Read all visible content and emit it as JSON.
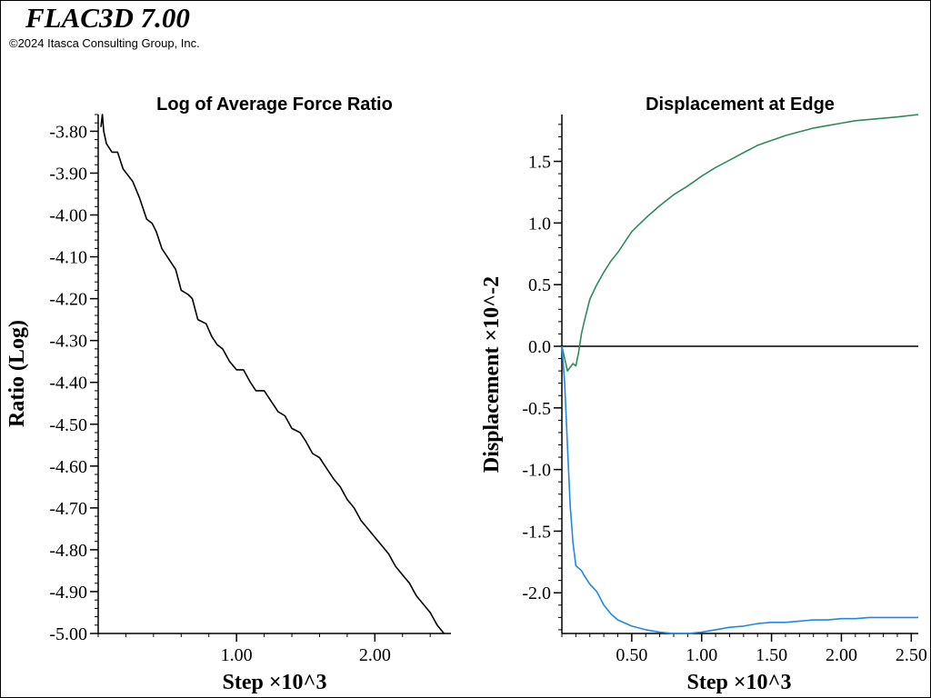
{
  "header": {
    "app_title": "FLAC3D 7.00",
    "copyright": "©2024 Itasca Consulting Group, Inc."
  },
  "chart_data": [
    {
      "type": "line",
      "title": "Log of Average Force Ratio",
      "xlabel": "Step ×10^3",
      "ylabel": "Ratio (Log)",
      "xlim": [
        0.0,
        2.55
      ],
      "ylim": [
        -5.0,
        -3.76
      ],
      "x_ticks": [
        {
          "v": 1.0,
          "label": "1.00"
        },
        {
          "v": 2.0,
          "label": "2.00"
        }
      ],
      "y_ticks": [
        {
          "v": -3.8,
          "label": "-3.80"
        },
        {
          "v": -3.9,
          "label": "-3.90"
        },
        {
          "v": -4.0,
          "label": "-4.00"
        },
        {
          "v": -4.1,
          "label": "-4.10"
        },
        {
          "v": -4.2,
          "label": "-4.20"
        },
        {
          "v": -4.3,
          "label": "-4.30"
        },
        {
          "v": -4.4,
          "label": "-4.40"
        },
        {
          "v": -4.5,
          "label": "-4.50"
        },
        {
          "v": -4.6,
          "label": "-4.60"
        },
        {
          "v": -4.7,
          "label": "-4.70"
        },
        {
          "v": -4.8,
          "label": "-4.80"
        },
        {
          "v": -4.9,
          "label": "-4.90"
        },
        {
          "v": -5.0,
          "label": "-5.00"
        }
      ],
      "grid": false,
      "series": [
        {
          "color": "#000000",
          "x": [
            0.02,
            0.03,
            0.04,
            0.06,
            0.1,
            0.14,
            0.18,
            0.25,
            0.3,
            0.35,
            0.39,
            0.42,
            0.46,
            0.52,
            0.56,
            0.6,
            0.65,
            0.68,
            0.72,
            0.78,
            0.82,
            0.86,
            0.9,
            0.95,
            1.0,
            1.05,
            1.1,
            1.14,
            1.2,
            1.26,
            1.3,
            1.35,
            1.4,
            1.46,
            1.5,
            1.55,
            1.6,
            1.66,
            1.7,
            1.75,
            1.8,
            1.85,
            1.9,
            1.95,
            2.0,
            2.05,
            2.1,
            2.15,
            2.2,
            2.25,
            2.3,
            2.35,
            2.4,
            2.45,
            2.5
          ],
          "values": [
            -3.79,
            -3.76,
            -3.8,
            -3.83,
            -3.85,
            -3.85,
            -3.89,
            -3.92,
            -3.96,
            -4.01,
            -4.02,
            -4.04,
            -4.08,
            -4.11,
            -4.13,
            -4.18,
            -4.19,
            -4.2,
            -4.25,
            -4.26,
            -4.29,
            -4.31,
            -4.32,
            -4.35,
            -4.37,
            -4.37,
            -4.4,
            -4.42,
            -4.42,
            -4.45,
            -4.47,
            -4.48,
            -4.51,
            -4.52,
            -4.54,
            -4.57,
            -4.58,
            -4.61,
            -4.63,
            -4.65,
            -4.68,
            -4.7,
            -4.73,
            -4.75,
            -4.77,
            -4.79,
            -4.81,
            -4.84,
            -4.86,
            -4.88,
            -4.91,
            -4.93,
            -4.95,
            -4.98,
            -5.0
          ]
        }
      ]
    },
    {
      "type": "line",
      "title": "Displacement at Edge",
      "xlabel": "Step ×10^3",
      "ylabel": "Displacement ×10^-2",
      "xlim": [
        0.0,
        2.55
      ],
      "ylim": [
        -2.33,
        1.88
      ],
      "x_ticks": [
        {
          "v": 0.5,
          "label": "0.50"
        },
        {
          "v": 1.0,
          "label": "1.00"
        },
        {
          "v": 1.5,
          "label": "1.50"
        },
        {
          "v": 2.0,
          "label": "2.00"
        },
        {
          "v": 2.5,
          "label": "2.50"
        }
      ],
      "y_ticks": [
        {
          "v": 1.5,
          "label": "1.5"
        },
        {
          "v": 1.0,
          "label": "1.0"
        },
        {
          "v": 0.5,
          "label": "0.5"
        },
        {
          "v": 0.0,
          "label": "0.0"
        },
        {
          "v": -0.5,
          "label": "-0.5"
        },
        {
          "v": -1.0,
          "label": "-1.0"
        },
        {
          "v": -1.5,
          "label": "-1.5"
        },
        {
          "v": -2.0,
          "label": "-2.0"
        }
      ],
      "grid": false,
      "zero_line": true,
      "series": [
        {
          "color": "#2e8b57",
          "x": [
            0.0,
            0.02,
            0.04,
            0.06,
            0.08,
            0.1,
            0.12,
            0.14,
            0.16,
            0.2,
            0.25,
            0.3,
            0.35,
            0.4,
            0.5,
            0.6,
            0.7,
            0.8,
            0.9,
            1.0,
            1.1,
            1.2,
            1.3,
            1.4,
            1.5,
            1.6,
            1.7,
            1.8,
            1.9,
            2.0,
            2.1,
            2.2,
            2.3,
            2.4,
            2.55
          ],
          "values": [
            0.0,
            -0.1,
            -0.2,
            -0.17,
            -0.14,
            -0.16,
            -0.05,
            0.1,
            0.2,
            0.38,
            0.5,
            0.6,
            0.69,
            0.76,
            0.93,
            1.04,
            1.14,
            1.23,
            1.3,
            1.38,
            1.45,
            1.51,
            1.57,
            1.63,
            1.67,
            1.71,
            1.74,
            1.77,
            1.79,
            1.81,
            1.83,
            1.84,
            1.85,
            1.86,
            1.88
          ]
        },
        {
          "color": "#1e88e5",
          "x": [
            0.0,
            0.02,
            0.04,
            0.06,
            0.08,
            0.1,
            0.12,
            0.14,
            0.16,
            0.2,
            0.25,
            0.3,
            0.35,
            0.4,
            0.5,
            0.6,
            0.7,
            0.8,
            0.9,
            1.0,
            1.1,
            1.2,
            1.3,
            1.4,
            1.5,
            1.6,
            1.7,
            1.8,
            1.9,
            2.0,
            2.1,
            2.2,
            2.3,
            2.4,
            2.55
          ],
          "values": [
            0.0,
            -0.3,
            -0.8,
            -1.3,
            -1.6,
            -1.78,
            -1.8,
            -1.82,
            -1.86,
            -1.93,
            -1.99,
            -2.1,
            -2.17,
            -2.22,
            -2.27,
            -2.3,
            -2.32,
            -2.33,
            -2.33,
            -2.32,
            -2.3,
            -2.28,
            -2.27,
            -2.25,
            -2.24,
            -2.24,
            -2.23,
            -2.22,
            -2.22,
            -2.21,
            -2.21,
            -2.2,
            -2.2,
            -2.2,
            -2.2
          ]
        }
      ]
    }
  ]
}
